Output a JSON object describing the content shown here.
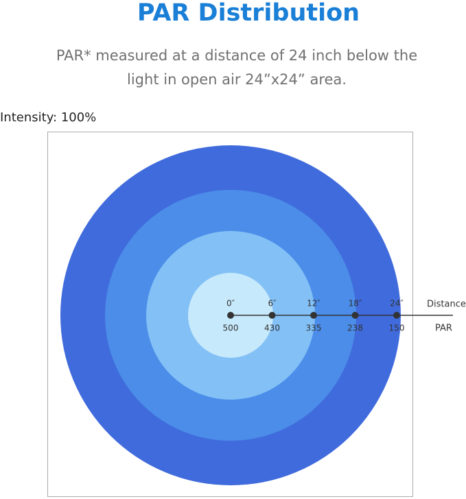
{
  "title": "PAR Distribution",
  "subtitle": [
    "PAR* measured at a distance of 24 inch below the",
    "light in open air 24”x24” area."
  ],
  "intensity": "Intensity: 100%",
  "axis_labels": {
    "distance": "Distance",
    "par": "PAR"
  },
  "points": [
    {
      "distance": "0″",
      "par": 500
    },
    {
      "distance": "6″",
      "par": 430
    },
    {
      "distance": "12″",
      "par": 335
    },
    {
      "distance": "18″",
      "par": 238
    },
    {
      "distance": "24″",
      "par": 150
    }
  ]
}
